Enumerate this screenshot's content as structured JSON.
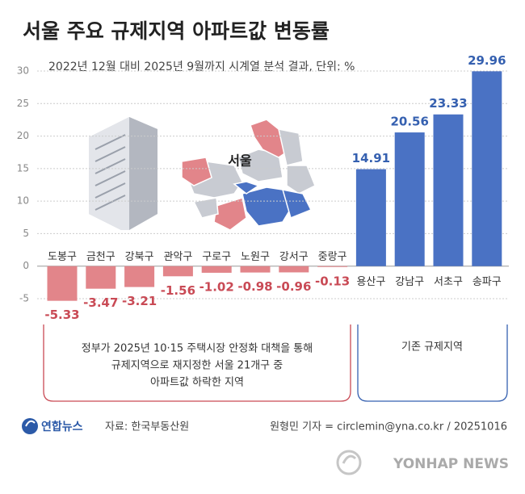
{
  "chart_data": {
    "type": "bar",
    "title": "서울 주요 규제지역 아파트값 변동률",
    "subtitle": "2022년 12월 대비 2025년 9월까지 시계열 분석 결과, 단위: %",
    "categories": [
      "도봉구",
      "금천구",
      "강북구",
      "관악구",
      "구로구",
      "노원구",
      "강서구",
      "중랑구",
      "용산구",
      "강남구",
      "서초구",
      "송파구"
    ],
    "values": [
      -5.33,
      -3.47,
      -3.21,
      -1.56,
      -1.02,
      -0.98,
      -0.96,
      -0.13,
      14.91,
      20.56,
      23.33,
      29.96
    ],
    "colors": {
      "positive": "#4a72c4",
      "negative": "#e2858a"
    },
    "label_colors": {
      "positive": "#3560b0",
      "negative": "#c94a55"
    },
    "ylim": [
      -5,
      30
    ],
    "yticks": [
      -5,
      0,
      5,
      10,
      15,
      20,
      25,
      30
    ],
    "grid": true,
    "map_label": "서울",
    "group_notes": [
      {
        "lines": [
          "정부가 2025년 10·15 주택시장 안정화 대책을 통해",
          "규제지역으로 재지정한 서울 21개구 중",
          "아파트값 하락한 지역"
        ]
      },
      {
        "lines": [
          "기존 규제지역"
        ]
      }
    ],
    "logo": "연합뉴스",
    "source": "자료: 한국부동산원",
    "credit": "원형민 기자 = circlemin@yna.co.kr / 20251016",
    "watermark": "YONHAP NEWS"
  }
}
